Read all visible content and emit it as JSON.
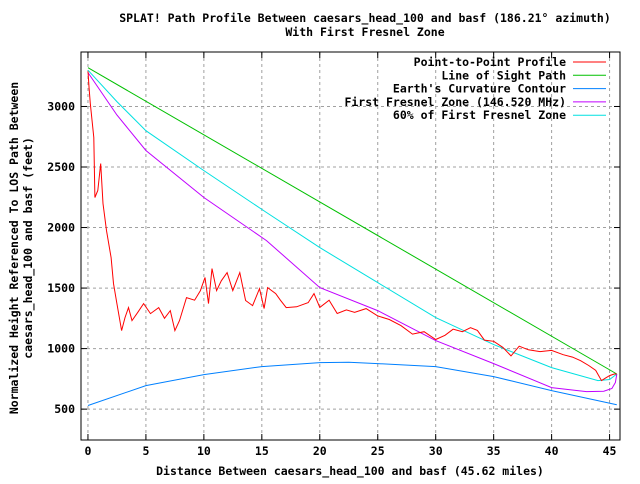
{
  "chart_data": {
    "type": "line",
    "title": "SPLAT! Path Profile Between caesars_head_100 and basf (186.21° azimuth)",
    "subtitle": "With First Fresnel Zone",
    "xlabel": "Distance Between caesars_head_100 and basf (45.62 miles)",
    "ylabel_lines": [
      "Normalized Height Referenced To LOS Path Between",
      "caesars_head_100 and basf (feet)"
    ],
    "xlim": [
      -0.6,
      45.9
    ],
    "ylim": [
      245,
      3450
    ],
    "xticks": [
      0,
      5,
      10,
      15,
      20,
      25,
      30,
      35,
      40,
      45
    ],
    "yticks": [
      500,
      1000,
      1500,
      2000,
      2500,
      3000
    ],
    "grid": true,
    "legend_position": "top-right",
    "series": [
      {
        "name": "Point-to-Point Profile",
        "color": "#ff0000",
        "x": [
          0,
          0.1,
          0.2,
          0.5,
          0.6,
          0.85,
          1.1,
          1.3,
          1.6,
          2.0,
          2.2,
          2.5,
          2.9,
          3.2,
          3.5,
          3.8,
          4.3,
          4.8,
          5.4,
          6.1,
          6.6,
          7.1,
          7.5,
          7.9,
          8.5,
          9.2,
          9.7,
          10.1,
          10.4,
          10.7,
          11.1,
          11.5,
          12.0,
          12.5,
          13.1,
          13.6,
          14.2,
          14.8,
          15.2,
          15.5,
          16.2,
          16.6,
          17.1,
          18,
          19,
          19.5,
          20,
          20.8,
          21.5,
          22.3,
          23,
          24,
          25,
          26,
          27,
          28,
          29,
          30,
          30.8,
          31.5,
          32.3,
          33,
          33.6,
          34.2,
          35,
          35.8,
          36.5,
          37.2,
          38,
          39,
          40,
          41,
          41.8,
          42.5,
          43.2,
          43.8,
          44.3,
          44.7,
          45,
          45.4,
          45.62
        ],
        "y": [
          3290,
          3150,
          3025,
          2744,
          2248,
          2306,
          2529,
          2198,
          1975,
          1752,
          1537,
          1372,
          1149,
          1256,
          1339,
          1231,
          1300,
          1372,
          1289,
          1339,
          1250,
          1314,
          1149,
          1231,
          1421,
          1400,
          1479,
          1587,
          1372,
          1661,
          1479,
          1560,
          1628,
          1479,
          1628,
          1397,
          1355,
          1496,
          1331,
          1504,
          1454,
          1400,
          1339,
          1345,
          1380,
          1454,
          1340,
          1400,
          1290,
          1320,
          1300,
          1330,
          1270,
          1240,
          1190,
          1120,
          1140,
          1075,
          1110,
          1160,
          1140,
          1173,
          1150,
          1070,
          1060,
          1010,
          940,
          1020,
          990,
          975,
          985,
          950,
          930,
          900,
          860,
          820,
          736,
          760,
          777,
          790,
          790
        ]
      },
      {
        "name": "Line of Sight Path",
        "color": "#00c000",
        "x": [
          0,
          45.62
        ],
        "y": [
          3320,
          790
        ]
      },
      {
        "name": "Earth's Curvature Contour",
        "color": "#0080ff",
        "x": [
          0,
          5,
          10,
          15,
          20,
          22.5,
          25,
          30,
          35,
          40,
          45.62
        ],
        "y": [
          530,
          694,
          785,
          851,
          884,
          888,
          876,
          851,
          769,
          653,
          537
        ]
      },
      {
        "name": "First Fresnel Zone (146.520 MHz)",
        "color": "#c000ff",
        "x": [
          0,
          2.5,
          5,
          10,
          15.4,
          20,
          25,
          30,
          35,
          40,
          43,
          44.5,
          45.2,
          45.5,
          45.62
        ],
        "y": [
          3280,
          2930,
          2636,
          2248,
          1892,
          1504,
          1314,
          1066,
          876,
          678,
          645,
          648,
          670,
          720,
          790
        ]
      },
      {
        "name": "60% of First Fresnel Zone",
        "color": "#00e0e0",
        "x": [
          0,
          2.5,
          5,
          10,
          15.4,
          20,
          25,
          30,
          35,
          40,
          44,
          45,
          45.62
        ],
        "y": [
          3300,
          3040,
          2800,
          2470,
          2124,
          1834,
          1545,
          1256,
          1033,
          843,
          736,
          745,
          790
        ]
      }
    ]
  }
}
